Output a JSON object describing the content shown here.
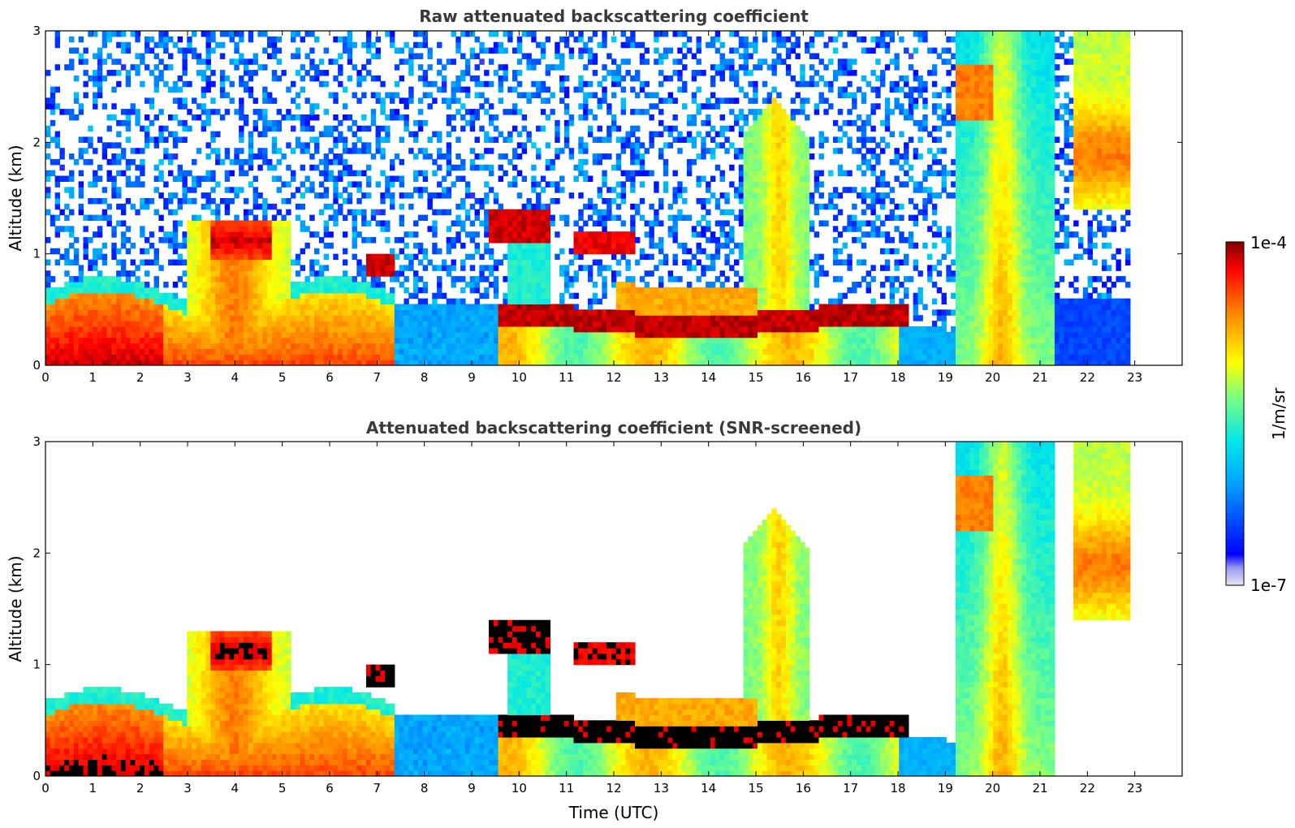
{
  "chart_data": [
    {
      "type": "heatmap",
      "title": "Raw attenuated backscattering coefficient",
      "xlabel": "",
      "ylabel": "Altitude (km)",
      "xlim": [
        0,
        24
      ],
      "ylim": [
        0,
        3
      ],
      "xticks": [
        0,
        1,
        2,
        3,
        4,
        5,
        6,
        7,
        8,
        9,
        10,
        11,
        12,
        13,
        14,
        15,
        16,
        17,
        18,
        19,
        20,
        21,
        22,
        23
      ],
      "yticks": [
        0,
        1,
        2,
        3
      ],
      "data_end_hour": 22.9,
      "screened": false,
      "features": [
        {
          "kind": "boundary_layer",
          "t_start": 0,
          "t_end": 7.3,
          "top_km": 0.6,
          "intensity": "high"
        },
        {
          "kind": "cloud",
          "t_start": 3.5,
          "t_end": 4.8,
          "base_km": 0.95,
          "top_km": 1.3,
          "intensity": "high"
        },
        {
          "kind": "cloud",
          "t_start": 6.8,
          "t_end": 7.4,
          "base_km": 0.8,
          "top_km": 1.0,
          "intensity": "very_high"
        },
        {
          "kind": "cloud",
          "t_start": 9.4,
          "t_end": 10.7,
          "base_km": 1.1,
          "top_km": 1.4,
          "intensity": "very_high"
        },
        {
          "kind": "cloud",
          "t_start": 11.2,
          "t_end": 12.4,
          "base_km": 1.0,
          "top_km": 1.2,
          "intensity": "very_high"
        },
        {
          "kind": "cloud_layer",
          "t_start": 9.6,
          "t_end": 19.2,
          "base_km": 0.3,
          "top_km": 0.5,
          "intensity": "very_high"
        },
        {
          "kind": "plumes",
          "t_start": 14.7,
          "t_end": 16.1,
          "top_km": 2.4,
          "intensity": "medium"
        },
        {
          "kind": "plumes",
          "t_start": 19.2,
          "t_end": 21.3,
          "top_km": 3.0,
          "intensity": "medium"
        },
        {
          "kind": "plumes",
          "t_start": 21.7,
          "t_end": 22.9,
          "top_km": 3.0,
          "intensity": "medium"
        }
      ]
    },
    {
      "type": "heatmap",
      "title": "Attenuated backscattering coefficient (SNR-screened)",
      "xlabel": "Time (UTC)",
      "ylabel": "Altitude (km)",
      "xlim": [
        0,
        24
      ],
      "ylim": [
        0,
        3
      ],
      "xticks": [
        0,
        1,
        2,
        3,
        4,
        5,
        6,
        7,
        8,
        9,
        10,
        11,
        12,
        13,
        14,
        15,
        16,
        17,
        18,
        19,
        20,
        21,
        22,
        23
      ],
      "yticks": [
        0,
        1,
        2,
        3
      ],
      "data_end_hour": 22.9,
      "screened": true
    }
  ],
  "colorbar": {
    "label": "1/m/sr",
    "max_label": "1e-4",
    "min_label": "1e-7",
    "scale": "log",
    "range": [
      1e-07,
      0.0001
    ],
    "colormap": "jet"
  }
}
